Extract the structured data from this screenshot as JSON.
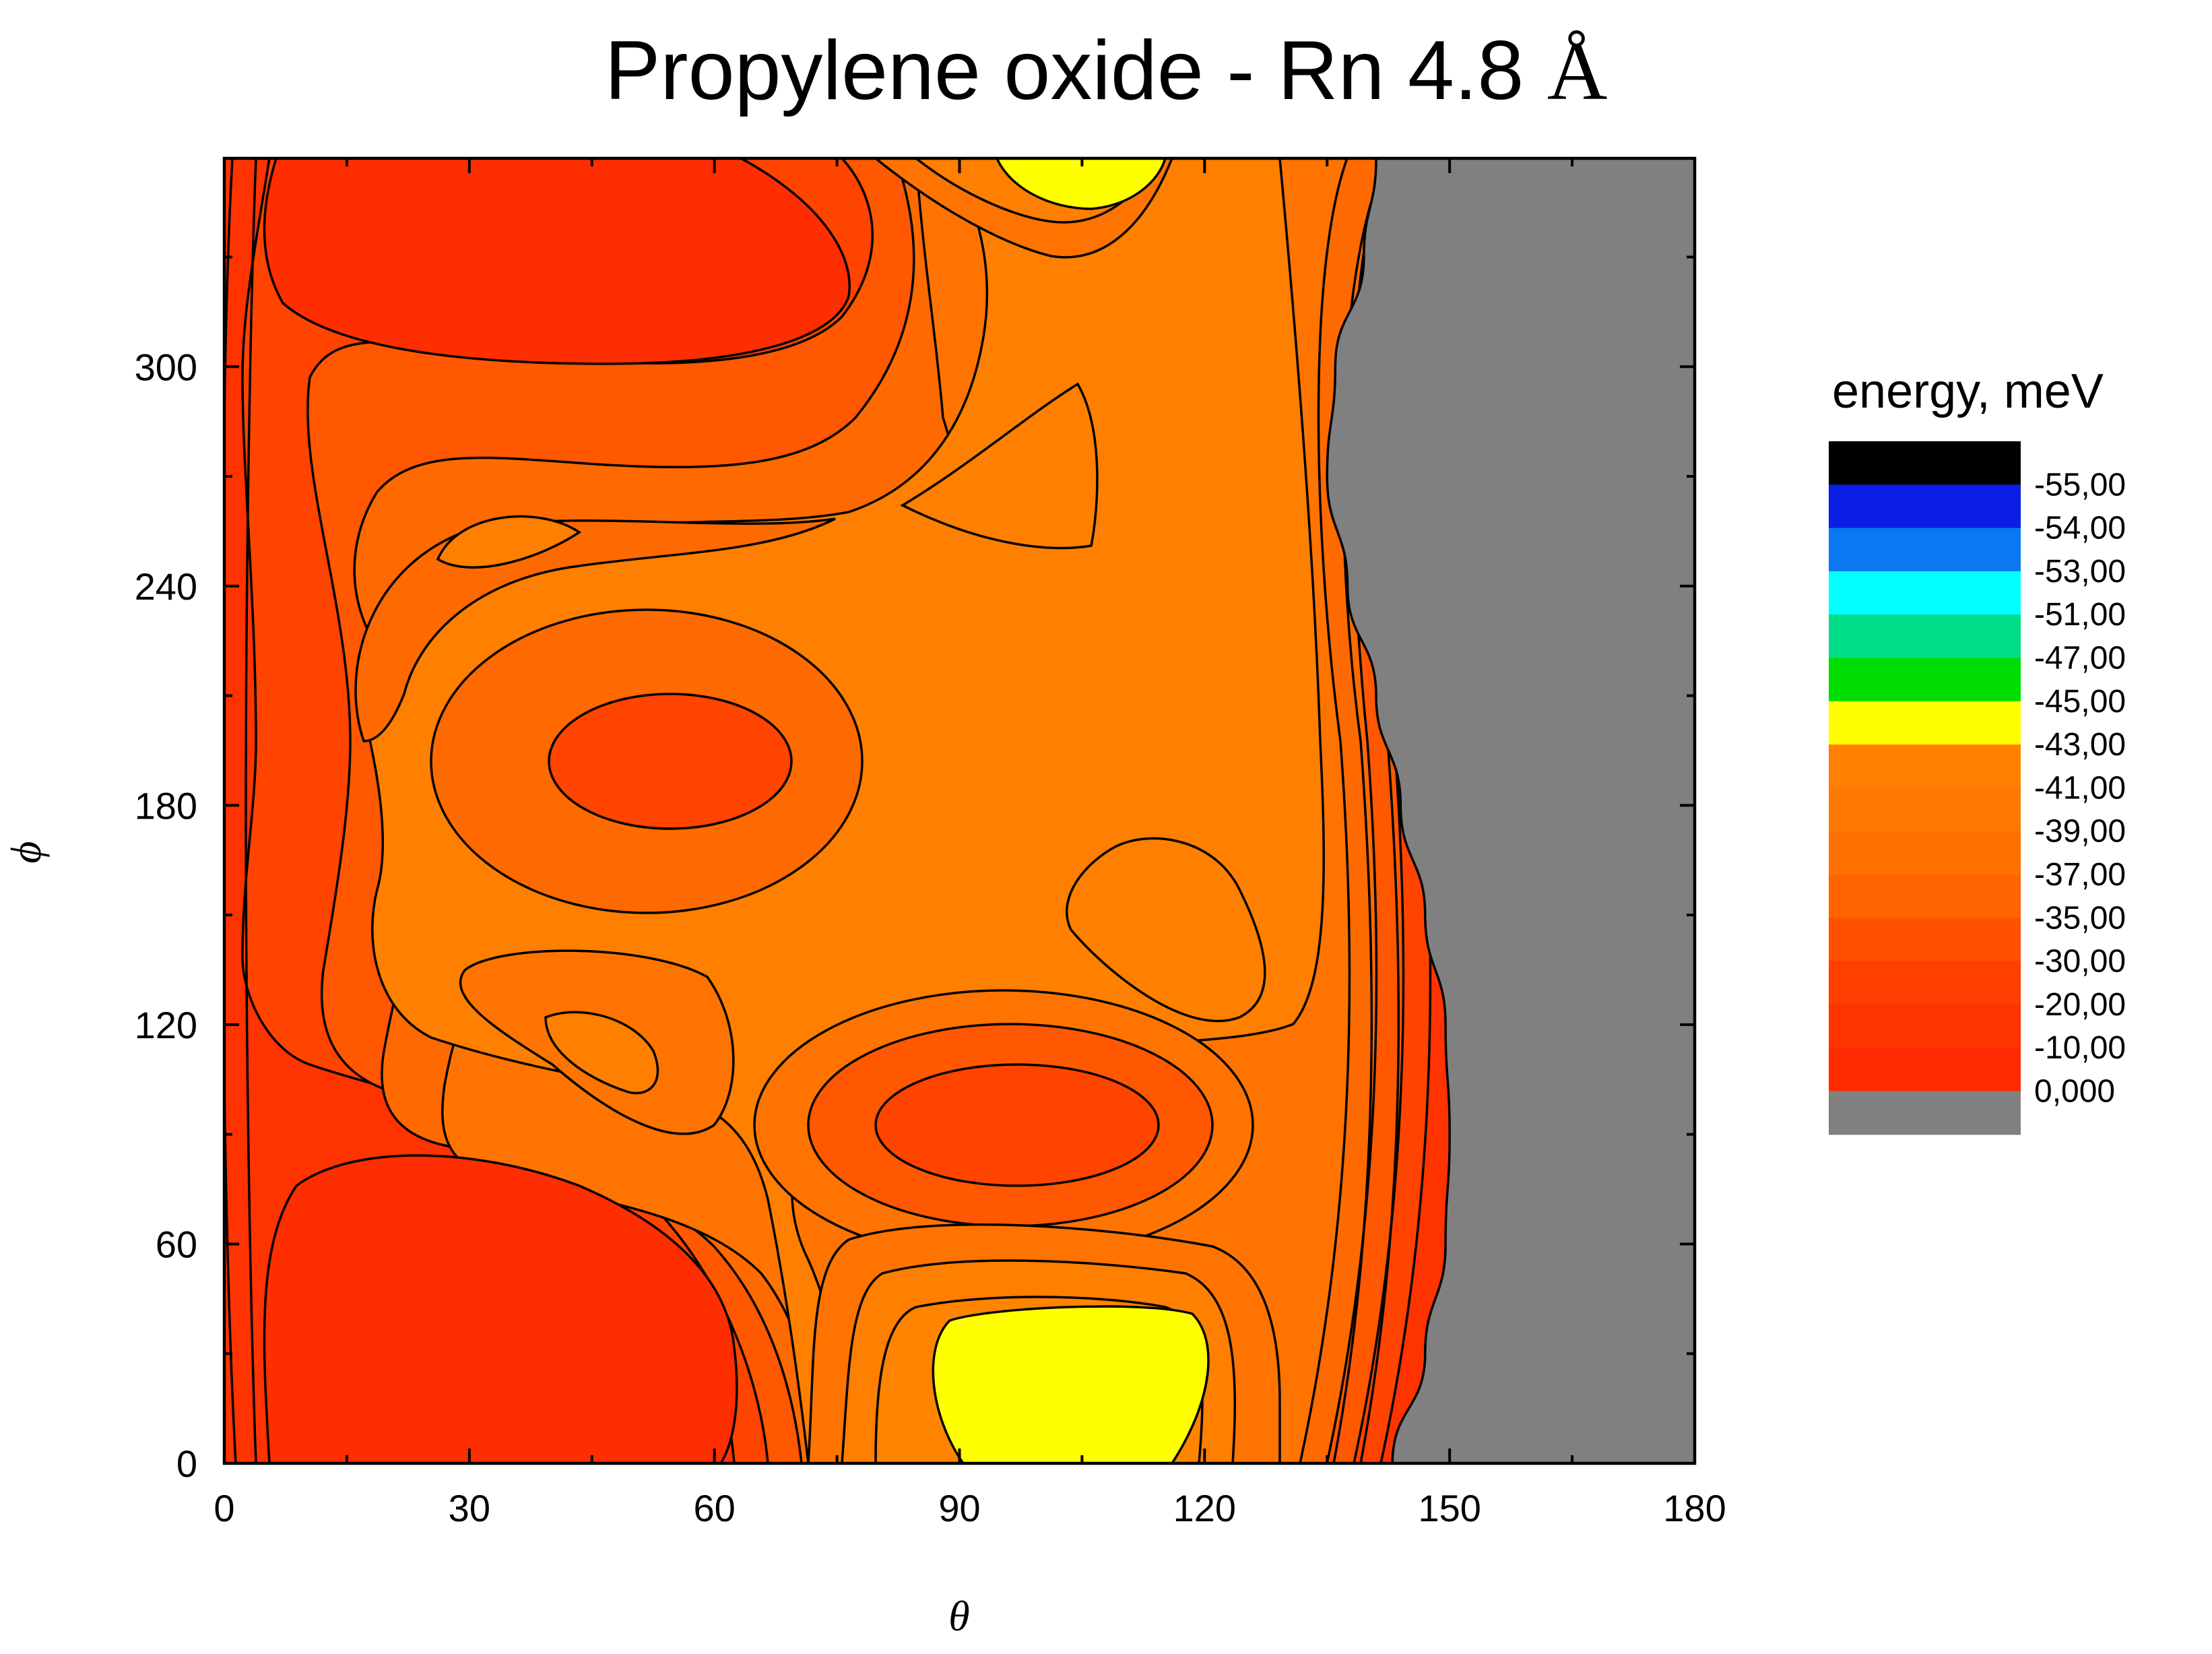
{
  "chart_data": {
    "type": "heatmap",
    "title": "Propylene oxide - Rn 4.8 Å",
    "title_parts": {
      "main": "Propylene oxide - Rn 4.8 ",
      "unit": "Å"
    },
    "xlabel": "θ",
    "ylabel": "ϕ",
    "xlim": [
      0,
      180
    ],
    "ylim": [
      0,
      357
    ],
    "x_ticks": [
      0,
      30,
      60,
      90,
      120,
      150,
      180
    ],
    "y_ticks": [
      0,
      60,
      120,
      180,
      240,
      300
    ],
    "grid": false,
    "legend": {
      "title": "energy, meV",
      "placement": "right",
      "levels": [
        "-55,00",
        "-54,00",
        "-53,00",
        "-51,00",
        "-47,00",
        "-45,00",
        "-43,00",
        "-41,00",
        "-39,00",
        "-37,00",
        "-35,00",
        "-30,00",
        "-20,00",
        "-10,00",
        "0,000"
      ],
      "colors": [
        "#000000",
        "#0a1ee6",
        "#0a78f0",
        "#00ffff",
        "#00dd88",
        "#00dd00",
        "#ffff00",
        "#ff8000",
        "#ff7800",
        "#ff7000",
        "#ff6400",
        "#ff5000",
        "#ff3e00",
        "#ff3300",
        "#ff2a00",
        "#808080"
      ]
    },
    "regions": [
      {
        "name": "repulsive (> 0 meV)",
        "color": "#808080",
        "boundary_theta_by_phi": [
          [
            0,
            143
          ],
          [
            30,
            147
          ],
          [
            60,
            149.5
          ],
          [
            90,
            150
          ],
          [
            120,
            149.5
          ],
          [
            150,
            147
          ],
          [
            180,
            144
          ],
          [
            210,
            141
          ],
          [
            240,
            137.5
          ],
          [
            270,
            135
          ],
          [
            300,
            136
          ],
          [
            330,
            139.5
          ],
          [
            357,
            141
          ]
        ]
      },
      {
        "name": "minimum",
        "color": "#ffff00",
        "center": [
          100,
          20
        ],
        "level": "-43,00"
      },
      {
        "name": "minimum",
        "color": "#ffff00",
        "center": [
          102,
          352
        ],
        "level": "-43,00"
      },
      {
        "name": "local maximum",
        "color": "#ff3e00",
        "center": [
          100,
          93
        ]
      },
      {
        "name": "local maximum",
        "color": "#ff3e00",
        "center": [
          54,
          192
        ]
      }
    ]
  }
}
